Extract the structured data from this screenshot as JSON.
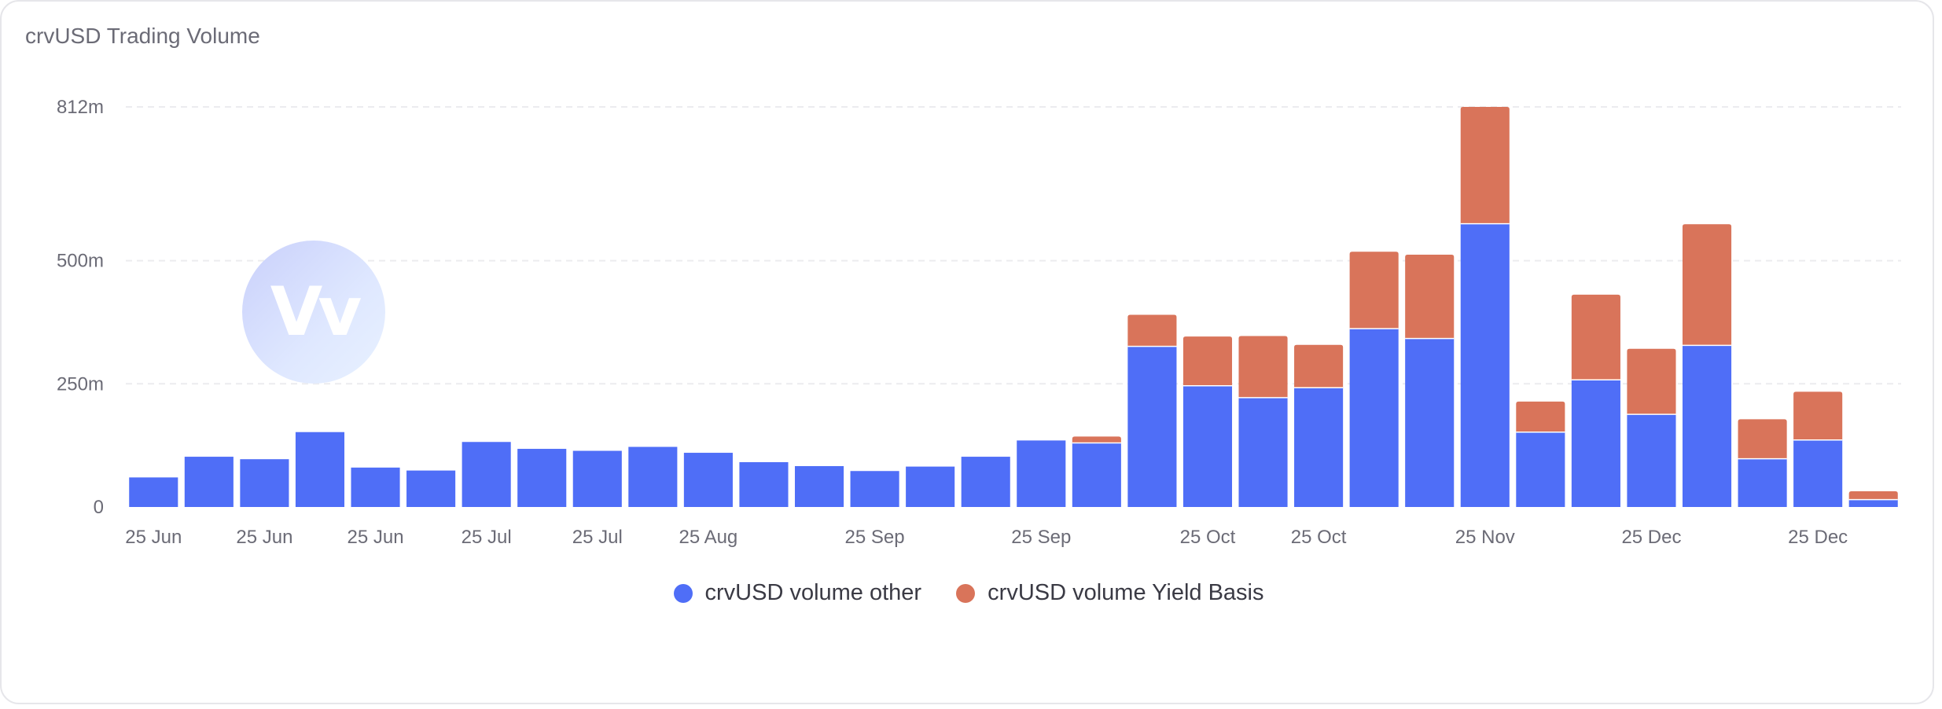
{
  "card": {
    "title": "crvUSD Trading Volume"
  },
  "logo": {
    "text": "Vv"
  },
  "colors": {
    "other": "#4f6ef7",
    "yield_basis": "#d9745a",
    "grid": "#ececef"
  },
  "legend": [
    {
      "label": "crvUSD volume other",
      "color": "#4f6ef7"
    },
    {
      "label": "crvUSD volume Yield Basis",
      "color": "#d9745a"
    }
  ],
  "chart_data": {
    "type": "bar",
    "stacked": true,
    "title": "crvUSD Trading Volume",
    "ylim": [
      0,
      812
    ],
    "yticks": [
      {
        "value": 0,
        "label": "0"
      },
      {
        "value": 250,
        "label": "250m"
      },
      {
        "value": 500,
        "label": "500m"
      },
      {
        "value": 812,
        "label": "812m"
      }
    ],
    "xticks": [
      {
        "index": 0,
        "label": "25 Jun"
      },
      {
        "index": 2,
        "label": "25 Jun"
      },
      {
        "index": 4,
        "label": "25 Jun"
      },
      {
        "index": 6,
        "label": "25 Jul"
      },
      {
        "index": 8,
        "label": "25 Jul"
      },
      {
        "index": 10,
        "label": "25 Aug"
      },
      {
        "index": 13,
        "label": "25 Sep"
      },
      {
        "index": 16,
        "label": "25 Sep"
      },
      {
        "index": 19,
        "label": "25 Oct"
      },
      {
        "index": 21,
        "label": "25 Oct"
      },
      {
        "index": 24,
        "label": "25 Nov"
      },
      {
        "index": 27,
        "label": "25 Dec"
      },
      {
        "index": 30,
        "label": "25 Dec"
      }
    ],
    "grid": true,
    "legend_position": "bottom-center",
    "series": [
      {
        "name": "crvUSD volume other",
        "values": [
          60,
          102,
          97,
          152,
          80,
          74,
          132,
          118,
          114,
          122,
          110,
          91,
          83,
          73,
          82,
          102,
          135,
          130,
          326,
          246,
          222,
          242,
          362,
          342,
          575,
          152,
          258,
          188,
          328,
          98,
          136,
          15
        ]
      },
      {
        "name": "crvUSD volume Yield Basis",
        "values": [
          0,
          0,
          0,
          0,
          0,
          0,
          0,
          0,
          0,
          0,
          0,
          0,
          0,
          0,
          0,
          0,
          0,
          13,
          64,
          100,
          125,
          87,
          156,
          170,
          237,
          62,
          173,
          133,
          246,
          80,
          98,
          17
        ]
      }
    ]
  }
}
